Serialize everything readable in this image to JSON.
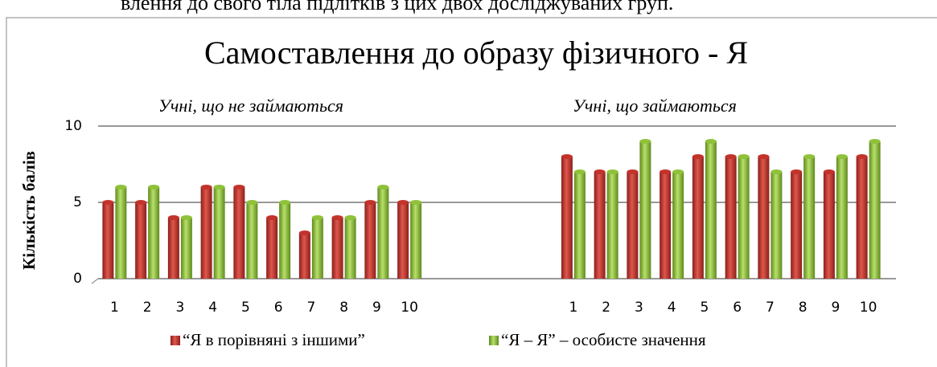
{
  "page_text": "влення до свого тіла підлітків з цих двох досліджуваних груп.",
  "chart_data": {
    "type": "bar",
    "title": "Самоставлення до образу фізичного  - Я",
    "annotations": [
      "Учні, що не займаються",
      "Учні, що  займаються"
    ],
    "y_label": "Кількість балів",
    "categories": [
      "1",
      "2",
      "3",
      "4",
      "5",
      "6",
      "7",
      "8",
      "9",
      "10",
      null,
      null,
      null,
      null,
      "1",
      "2",
      "3",
      "4",
      "5",
      "6",
      "7",
      "8",
      "9",
      "10"
    ],
    "series": [
      {
        "name": "“Я в порівняні з іншими”",
        "color": "#c3332b",
        "values": [
          5,
          5,
          4,
          6,
          6,
          4,
          3,
          4,
          5,
          5,
          null,
          null,
          null,
          null,
          8,
          7,
          7,
          7,
          8,
          8,
          8,
          7,
          7,
          8
        ]
      },
      {
        "name": "“Я – Я” – особисте значення",
        "color": "#8fc23a",
        "values": [
          6,
          6,
          4,
          6,
          5,
          5,
          4,
          4,
          6,
          5,
          null,
          null,
          null,
          null,
          7,
          7,
          9,
          7,
          9,
          8,
          7,
          8,
          8,
          9
        ]
      }
    ],
    "ylim": [
      0,
      10
    ],
    "yticks": [
      0,
      5,
      10
    ],
    "grid": true,
    "legend": "bottom"
  }
}
